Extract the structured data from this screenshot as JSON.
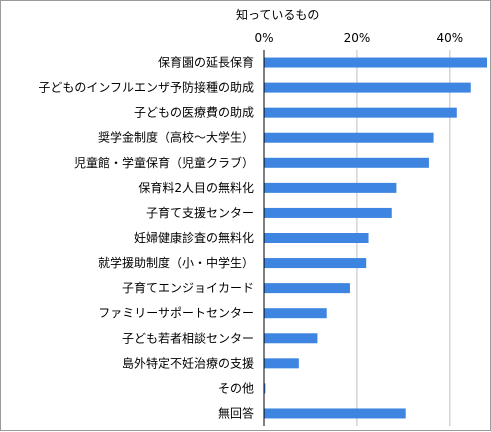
{
  "chart_data": {
    "type": "bar",
    "orientation": "horizontal",
    "title": "知っているもの",
    "xlabel": "",
    "ylabel": "",
    "xlim": [
      0,
      48
    ],
    "ticks": [
      0,
      20,
      40
    ],
    "tick_labels": [
      "0%",
      "20%",
      "40%"
    ],
    "grid": true,
    "categories": [
      "保育園の延長保育",
      "子どものインフルエンザ予防接種の助成",
      "子どもの医療費の助成",
      "奨学金制度（高校～大学生）",
      "児童館・学童保育（児童クラブ）",
      "保育料2人目の無料化",
      "子育て支援センター",
      "妊婦健康診査の無料化",
      "就学援助制度（小・中学生）",
      "子育てエンジョイカード",
      "ファミリーサポートセンター",
      "子ども若者相談センター",
      "島外特定不妊治療の支援",
      "その他",
      "無回答"
    ],
    "values": [
      48.0,
      44.5,
      41.5,
      36.5,
      35.5,
      28.5,
      27.5,
      22.5,
      22.0,
      18.5,
      13.5,
      11.5,
      7.5,
      0.3,
      30.5
    ],
    "bar_color": "#3d85e0"
  }
}
